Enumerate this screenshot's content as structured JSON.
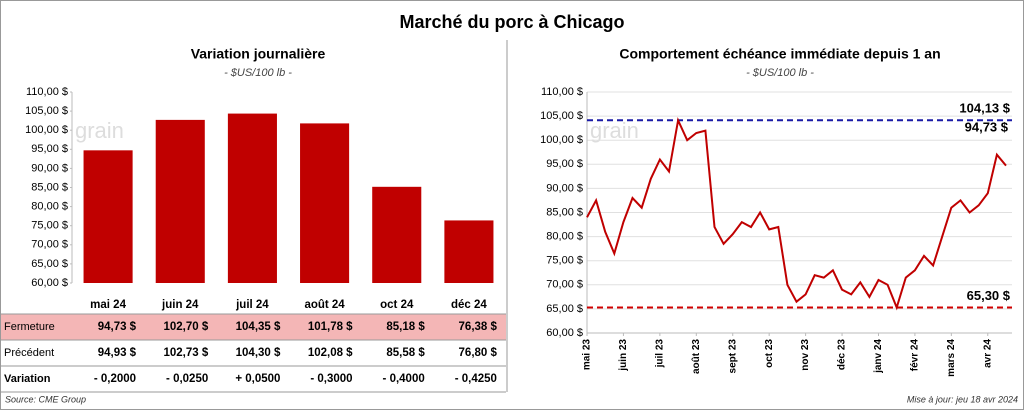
{
  "title": "Marché du porc à Chicago",
  "watermark": "grain",
  "source": "Source: CME Group",
  "updated": "Mise à jour: jeu 18 avr 2024",
  "chart_data": [
    {
      "type": "bar",
      "title": "Variation journalière",
      "subtitle": "- $US/100 lb -",
      "categories": [
        "mai 24",
        "juin 24",
        "juil 24",
        "août 24",
        "oct 24",
        "déc 24"
      ],
      "values": [
        94.73,
        102.7,
        104.35,
        101.78,
        85.18,
        76.38
      ],
      "color": "#c00000",
      "ylim": [
        60,
        110
      ],
      "yticks": [
        {
          "value": 60,
          "label": "60,00 $"
        },
        {
          "value": 65,
          "label": "65,00 $"
        },
        {
          "value": 70,
          "label": "70,00 $"
        },
        {
          "value": 75,
          "label": "75,00 $"
        },
        {
          "value": 80,
          "label": "80,00 $"
        },
        {
          "value": 85,
          "label": "85,00 $"
        },
        {
          "value": 90,
          "label": "90,00 $"
        },
        {
          "value": 95,
          "label": "95,00 $"
        },
        {
          "value": 100,
          "label": "100,00 $"
        },
        {
          "value": 105,
          "label": "105,00 $"
        },
        {
          "value": 110,
          "label": "110,00 $"
        }
      ],
      "grid": false
    },
    {
      "type": "line",
      "title": "Comportement  échéance immédiate depuis 1 an",
      "subtitle": "- $US/100 lb -",
      "categories": [
        "mai 23",
        null,
        null,
        null,
        "juin 23",
        null,
        null,
        null,
        "juil 23",
        null,
        null,
        null,
        "août 23",
        null,
        null,
        null,
        "sept 23",
        null,
        null,
        null,
        "oct 23",
        null,
        null,
        null,
        "nov 23",
        null,
        null,
        null,
        "déc 23",
        null,
        null,
        null,
        "janv 24",
        null,
        null,
        null,
        "févr 24",
        null,
        null,
        null,
        "mars 24",
        null,
        null,
        null,
        "avr 24",
        null,
        null
      ],
      "values": [
        84,
        87.5,
        81,
        76.5,
        83,
        88,
        86,
        92,
        96,
        93.5,
        104.13,
        100,
        101.5,
        102,
        82,
        78.5,
        80.5,
        83,
        82,
        85,
        81.5,
        82,
        70,
        66.5,
        68,
        72,
        71.5,
        73,
        69,
        68,
        70.5,
        67.5,
        71,
        70,
        65.3,
        71.5,
        73,
        76,
        74,
        80,
        86,
        87.5,
        85,
        86.5,
        89,
        97,
        94.73
      ],
      "color": "#c00000",
      "ylim": [
        60,
        110
      ],
      "yticks": [
        {
          "value": 60,
          "label": "60,00 $"
        },
        {
          "value": 65,
          "label": "65,00 $"
        },
        {
          "value": 70,
          "label": "70,00 $"
        },
        {
          "value": 75,
          "label": "75,00 $"
        },
        {
          "value": 80,
          "label": "80,00 $"
        },
        {
          "value": 85,
          "label": "85,00 $"
        },
        {
          "value": 90,
          "label": "90,00 $"
        },
        {
          "value": 95,
          "label": "95,00 $"
        },
        {
          "value": 100,
          "label": "100,00 $"
        },
        {
          "value": 105,
          "label": "105,00 $"
        },
        {
          "value": 110,
          "label": "110,00 $"
        }
      ],
      "grid": true,
      "ref_lines": [
        {
          "value": 104.13,
          "label": "104,13 $",
          "color": "#1a1aa6"
        },
        {
          "value": 65.3,
          "label": "65,30 $",
          "color": "#d00000"
        }
      ],
      "end_label": "94,73 $"
    }
  ],
  "table": {
    "rows": [
      {
        "label": "Fermeture",
        "color": "#c00000",
        "background": "#f4b6b6",
        "cells": [
          "94,73 $",
          "102,70 $",
          "104,35 $",
          "101,78 $",
          "85,18 $",
          "76,38 $"
        ]
      },
      {
        "label": "Précédent",
        "color": "#000000",
        "cells": [
          "94,93 $",
          "102,73 $",
          "104,30 $",
          "102,08 $",
          "85,58 $",
          "76,80 $"
        ]
      },
      {
        "label": "Variation",
        "color": "#000000",
        "cells": [
          "- 0,2000",
          "- 0,0250",
          "+ 0,0500",
          "- 0,3000",
          "- 0,4000",
          "- 0,4250"
        ],
        "cell_colors": [
          "#d00000",
          "#d00000",
          "#008000",
          "#d00000",
          "#d00000",
          "#d00000"
        ]
      }
    ]
  }
}
